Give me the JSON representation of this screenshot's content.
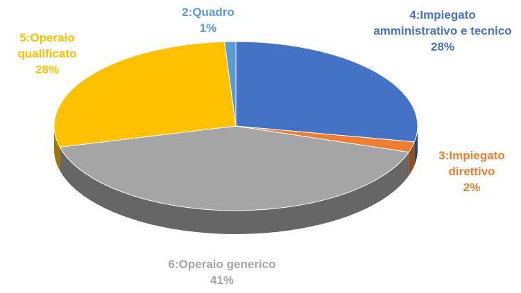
{
  "chart_data": {
    "type": "pie",
    "categories": [
      "4:Impiegato amministrativo e tecnico",
      "3:Impiegato direttivo",
      "6:Operaio generico",
      "5:Operaio qualificato",
      "2:Quadro"
    ],
    "values": [
      28,
      2,
      41,
      28,
      1
    ],
    "value_labels": [
      "28%",
      "2%",
      "41%",
      "28%",
      "1%"
    ],
    "colors": [
      "#4472c4",
      "#ed7d31",
      "#a5a5a5",
      "#ffc000",
      "#5b9bd5"
    ]
  }
}
